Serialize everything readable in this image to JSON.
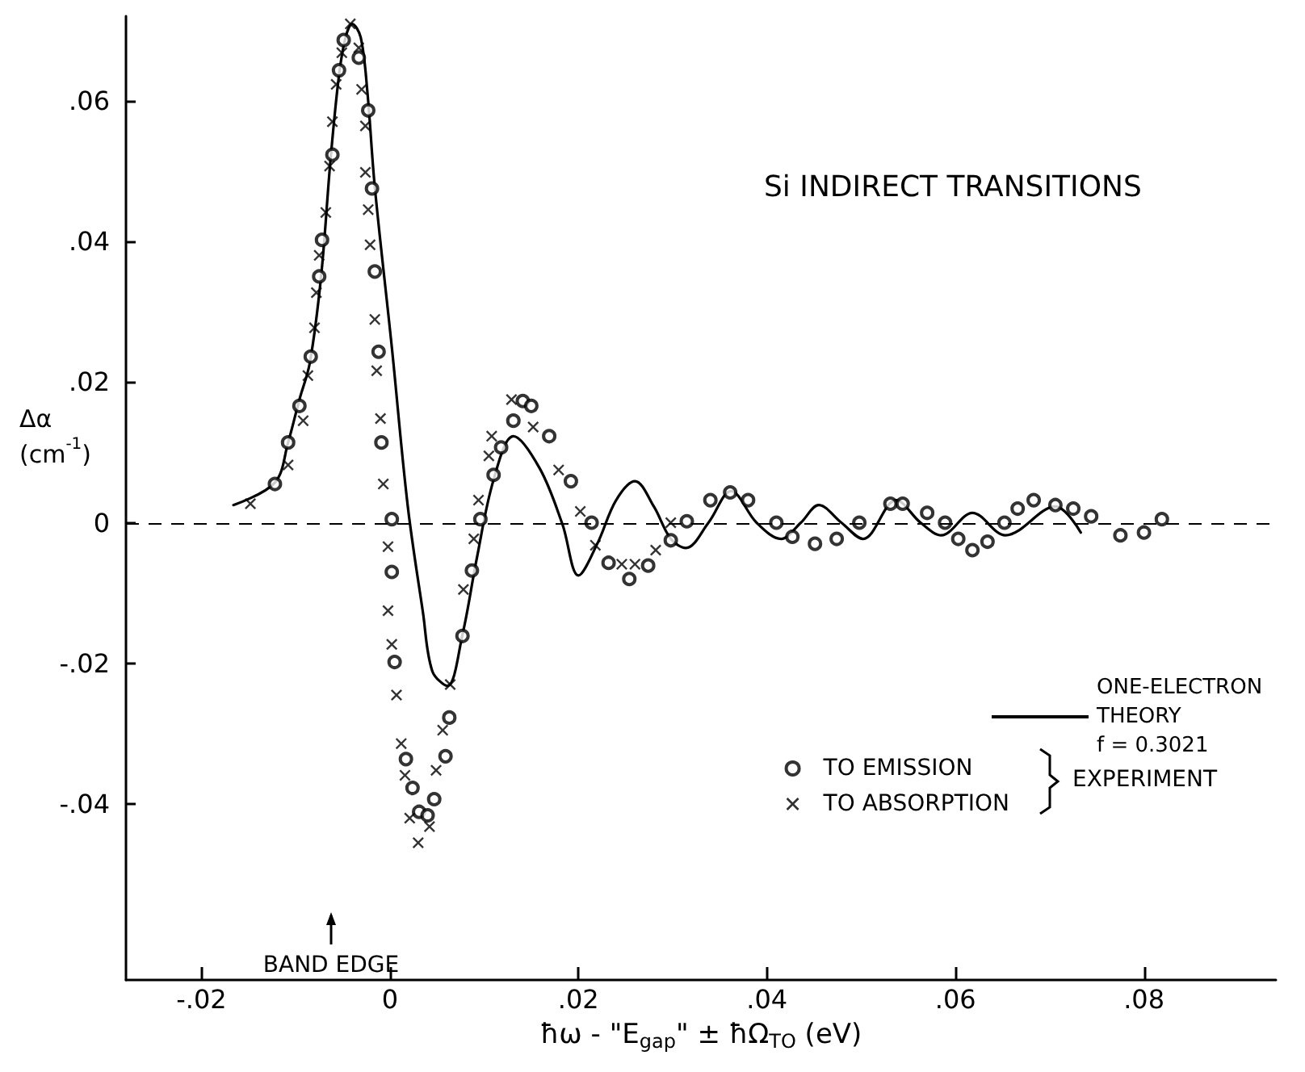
{
  "chart_data": {
    "type": "scatter",
    "title": "Si INDIRECT TRANSITIONS",
    "xlabel": "ħω - \"E$_{gap}$\" ± ħΩ$_{TO}$ (eV)",
    "ylabel": "Δα (cm$^{-1}$)",
    "legend_title": "EXPERIMENT",
    "series": [
      {
        "type": "line",
        "name": "ONE-ELECTRON\nTHEORY\nf = 0.3021",
        "color": "#000000",
        "marker": "none",
        "line_style": "solid",
        "x": [
          -0.0166,
          -0.0122,
          -0.0108,
          -0.0096,
          -0.0085,
          -0.0073,
          -0.0063,
          -0.0054,
          -0.0047,
          -0.004,
          -0.0031,
          -0.0024,
          -0.0016,
          0.0002,
          0.0019,
          0.0035,
          0.0045,
          0.0061,
          0.0077,
          0.0092,
          0.011,
          0.0131,
          0.0159,
          0.0183,
          0.02,
          0.022,
          0.024,
          0.026,
          0.028,
          0.0298,
          0.0314,
          0.0338,
          0.0362,
          0.0389,
          0.0415,
          0.0436,
          0.0455,
          0.0479,
          0.0502,
          0.0537,
          0.0563,
          0.0585,
          0.0618,
          0.0653,
          0.0706,
          0.0733
        ],
        "values": [
          0.0025,
          0.0057,
          0.0114,
          0.0175,
          0.0227,
          0.035,
          0.0516,
          0.0636,
          0.069,
          0.0709,
          0.069,
          0.0614,
          0.0477,
          0.025,
          0.0023,
          -0.0127,
          -0.0211,
          -0.0232,
          -0.0159,
          -0.0052,
          0.0061,
          0.0123,
          0.0077,
          -0.0002,
          -0.0075,
          -0.003,
          0.0032,
          0.0059,
          0.0023,
          -0.0023,
          -0.0036,
          0,
          0.0045,
          0,
          -0.0023,
          0,
          0.0025,
          0,
          -0.0023,
          0.0032,
          0,
          -0.0018,
          0.0014,
          -0.0018,
          0.0023,
          -0.0014
        ]
      },
      {
        "name": "TO EMISSION",
        "color": "#000000",
        "marker": "circle",
        "x": [
          -0.0122,
          -0.0108,
          -0.0096,
          -0.0084,
          -0.0075,
          -0.0072,
          -0.0061,
          -0.0054,
          -0.0049,
          -0.0033,
          -0.0023,
          -0.0019,
          -0.0016,
          -0.0012,
          -0.0009,
          0.0002,
          0.0002,
          0.0005,
          0.0017,
          0.0024,
          0.0031,
          0.004,
          0.0047,
          0.0059,
          0.0063,
          0.0077,
          0.0087,
          0.0096,
          0.011,
          0.0118,
          0.0131,
          0.0141,
          0.015,
          0.0169,
          0.0192,
          0.0214,
          0.0232,
          0.0254,
          0.0274,
          0.0298,
          0.0315,
          0.034,
          0.0361,
          0.038,
          0.041,
          0.0427,
          0.0451,
          0.0474,
          0.0498,
          0.0531,
          0.0544,
          0.057,
          0.0589,
          0.0603,
          0.0618,
          0.0634,
          0.0652,
          0.0666,
          0.0683,
          0.0706,
          0.0725,
          0.0744,
          0.0775,
          0.08,
          0.0819
        ],
        "values": [
          0.0055,
          0.0114,
          0.0166,
          0.0236,
          0.035,
          0.0402,
          0.0523,
          0.0643,
          0.0686,
          0.0661,
          0.0586,
          0.0475,
          0.0357,
          0.0243,
          0.0114,
          0.0005,
          -0.007,
          -0.0198,
          -0.0336,
          -0.0377,
          -0.0411,
          -0.0416,
          -0.0393,
          -0.0332,
          -0.0277,
          -0.0161,
          -0.0068,
          0.0005,
          0.0068,
          0.0107,
          0.0145,
          0.0173,
          0.0166,
          0.0123,
          0.0059,
          0,
          -0.0057,
          -0.008,
          -0.0061,
          -0.0025,
          0.0002,
          0.0032,
          0.0043,
          0.0032,
          0,
          -0.002,
          -0.003,
          -0.0023,
          0,
          0.0027,
          0.0027,
          0.0014,
          0,
          -0.0023,
          -0.0039,
          -0.0027,
          0,
          0.002,
          0.0032,
          0.0025,
          0.002,
          0.0009,
          -0.0018,
          -0.0014,
          0.0005
        ]
      },
      {
        "name": "TO ABSORPTION",
        "color": "#000000",
        "marker": "cross",
        "x": [
          -0.0148,
          -0.0108,
          -0.0092,
          -0.0087,
          -0.008,
          -0.0078,
          -0.0075,
          -0.0068,
          -0.0064,
          -0.0061,
          -0.0057,
          -0.0051,
          -0.0042,
          -0.0033,
          -0.003,
          -0.0026,
          -0.0026,
          -0.0023,
          -0.0021,
          -0.0016,
          -0.0014,
          -0.001,
          -0.0007,
          -0.0002,
          -0.0002,
          0.0002,
          0.0007,
          0.0012,
          0.0016,
          0.0021,
          0.003,
          0.0042,
          0.0049,
          0.0056,
          0.0064,
          0.0078,
          0.0089,
          0.0094,
          0.0105,
          0.0108,
          0.0129,
          0.0152,
          0.0179,
          0.0202,
          0.0218,
          0.0246,
          0.026,
          0.0282,
          0.0298
        ],
        "values": [
          0.0027,
          0.0082,
          0.0145,
          0.0209,
          0.0277,
          0.0327,
          0.038,
          0.0441,
          0.0507,
          0.057,
          0.0623,
          0.0668,
          0.0709,
          0.0675,
          0.0616,
          0.0564,
          0.0498,
          0.0445,
          0.0395,
          0.0289,
          0.0216,
          0.0148,
          0.0055,
          -0.0034,
          -0.0125,
          -0.0173,
          -0.0245,
          -0.0314,
          -0.0359,
          -0.042,
          -0.0455,
          -0.0432,
          -0.0352,
          -0.0295,
          -0.023,
          -0.0095,
          -0.0023,
          0.0032,
          0.0095,
          0.0123,
          0.0175,
          0.0136,
          0.0075,
          0.0016,
          -0.0032,
          -0.0059,
          -0.0059,
          -0.0039,
          0
        ]
      }
    ],
    "xlim": [
      -0.028,
      0.094
    ],
    "ylim": [
      -0.065,
      0.072
    ],
    "xticks": [
      {
        "value": -0.02,
        "label": "-.02"
      },
      0,
      {
        "value": 0.02,
        "label": ".02"
      },
      {
        "value": 0.04,
        "label": ".04"
      },
      {
        "value": 0.06,
        "label": ".06"
      },
      {
        "value": 0.08,
        "label": ".08"
      }
    ],
    "yticks": [
      {
        "value": -0.04,
        "label": "-.04"
      },
      {
        "value": -0.02,
        "label": "-.02"
      },
      0,
      {
        "value": 0.02,
        "label": ".02"
      },
      {
        "value": 0.04,
        "label": ".04"
      },
      {
        "value": 0.06,
        "label": ".06"
      }
    ],
    "ref_lines": [
      {
        "axis": "y",
        "value": 0,
        "color": "#000000",
        "line_style": "dashed"
      }
    ],
    "annotations": [
      "BAND EDGE"
    ],
    "grid": false,
    "legend": "bottom right"
  }
}
